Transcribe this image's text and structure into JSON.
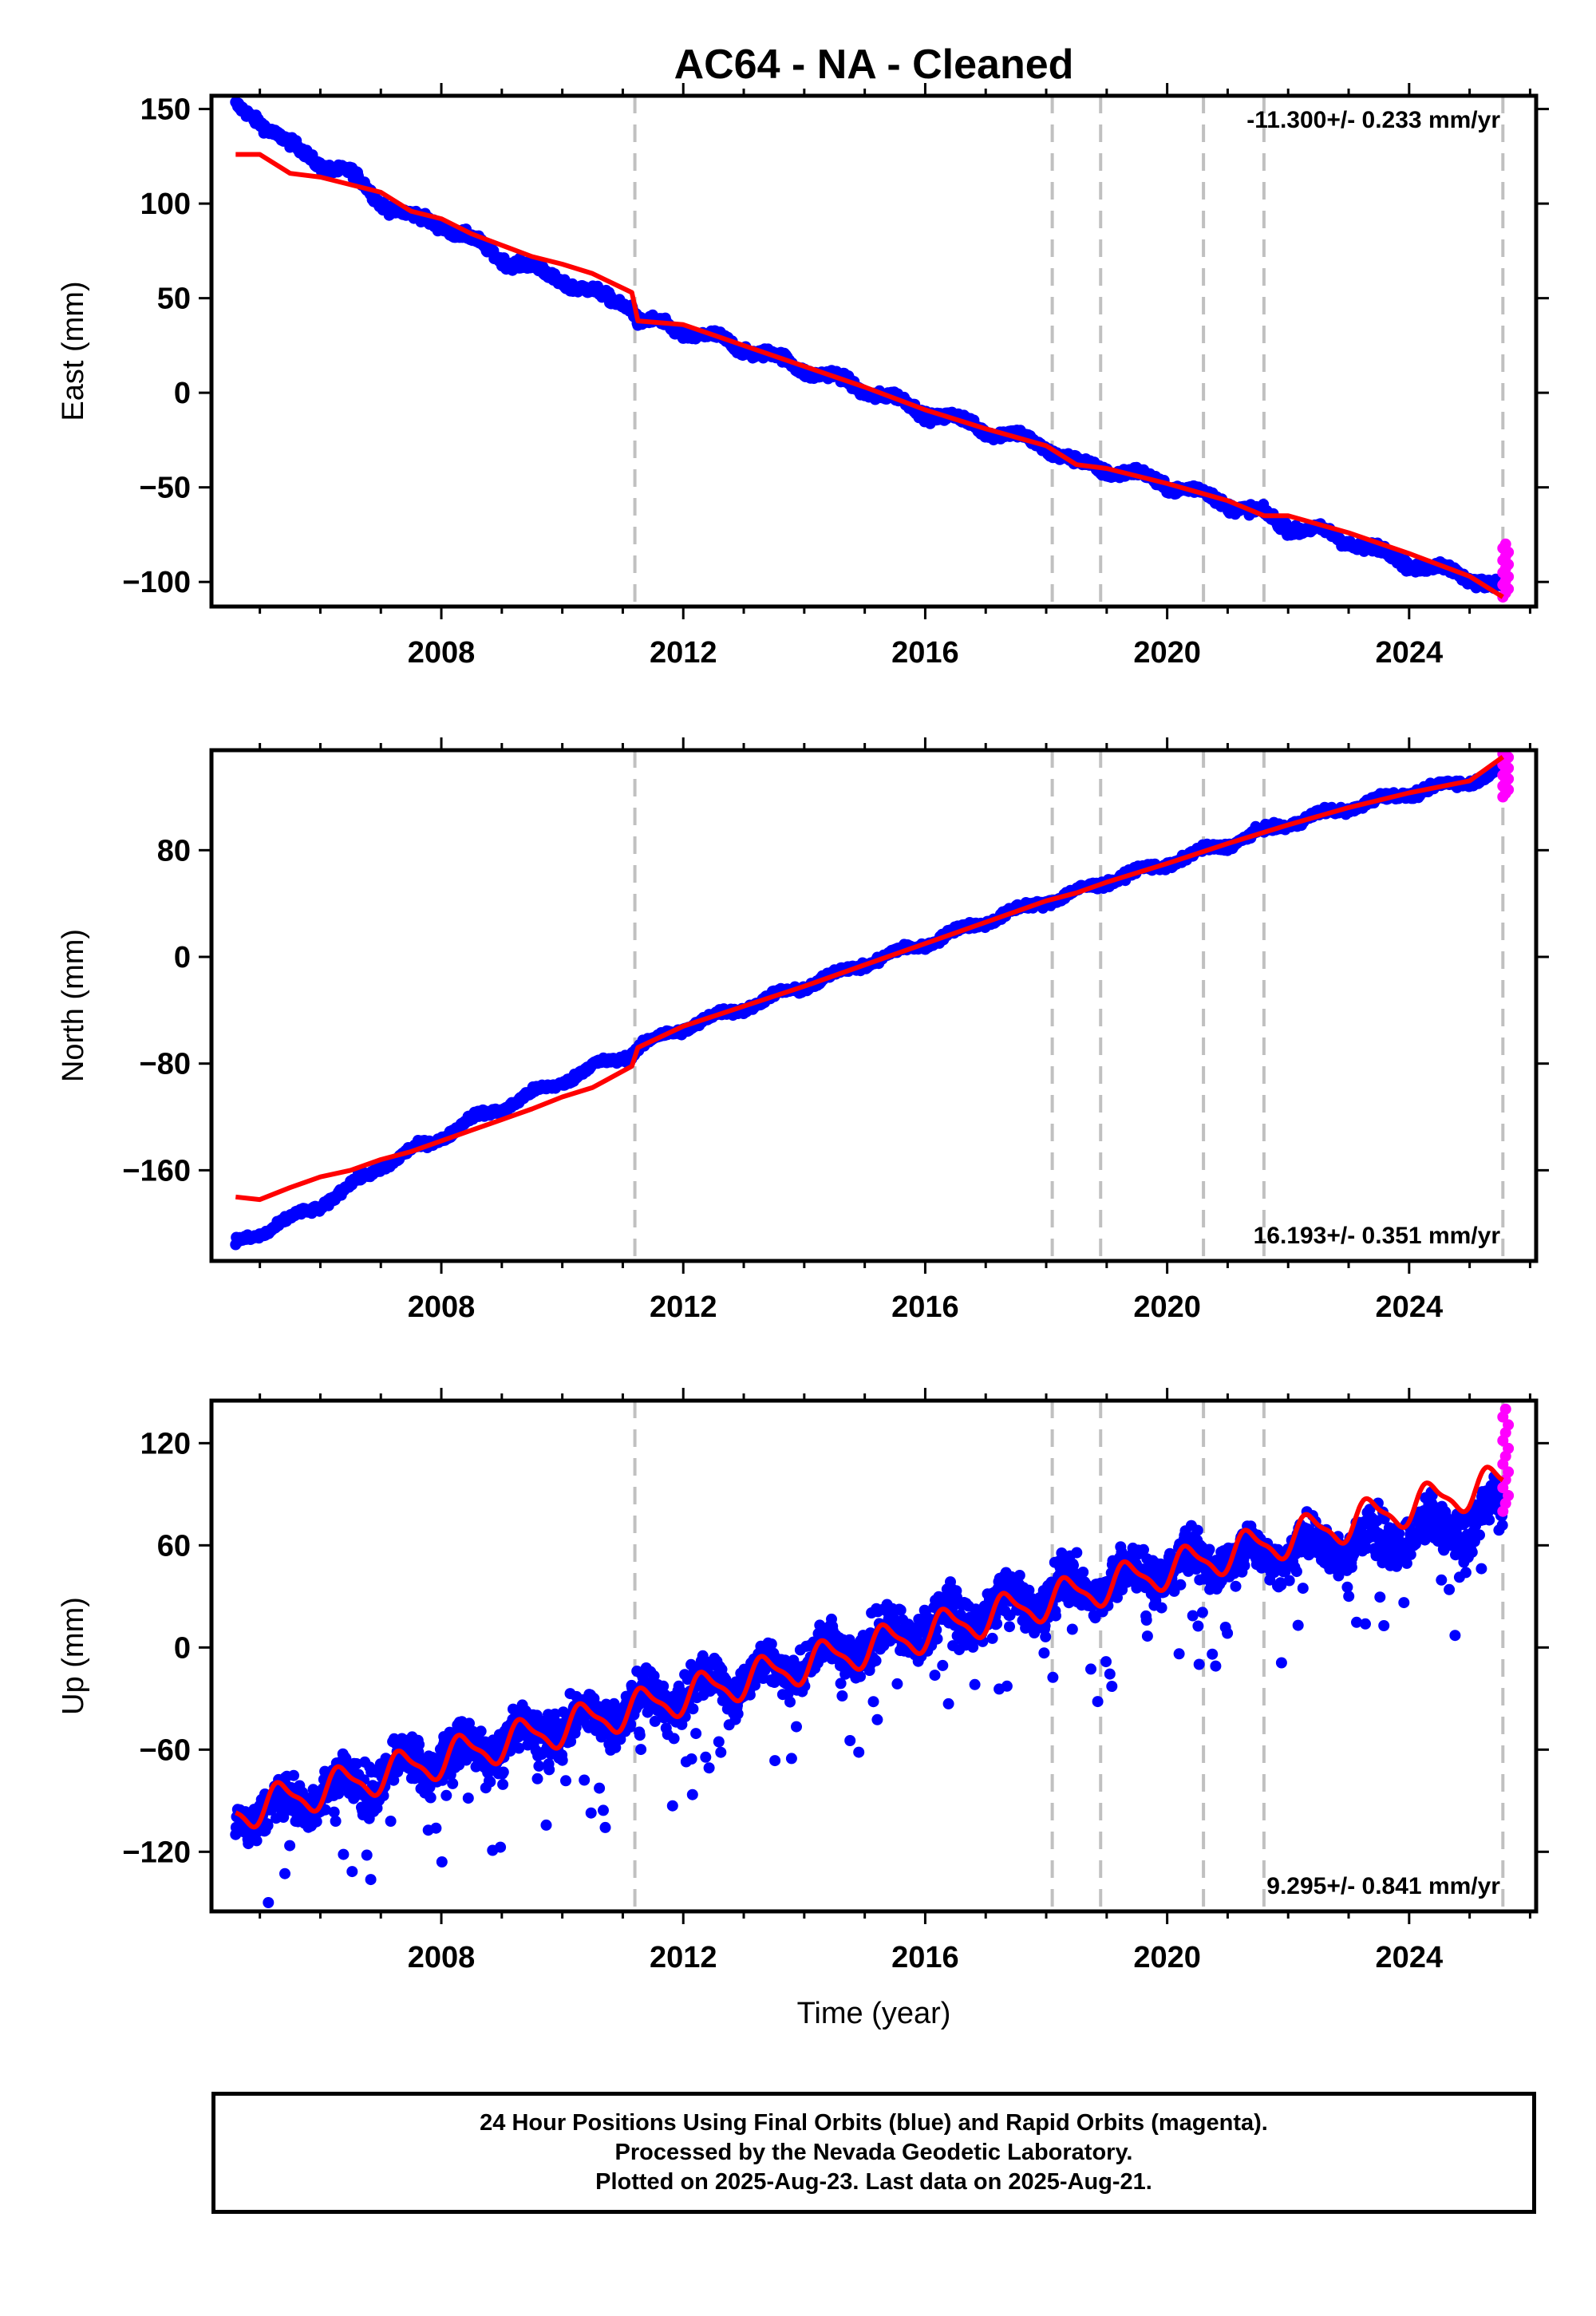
{
  "title": "AC64  - NA - Cleaned",
  "colors": {
    "final": "#0000ff",
    "rapid": "#ff00ff",
    "model": "#ff0000",
    "steps": "#c0c0c0"
  },
  "footer": {
    "line1": "24 Hour Positions Using Final Orbits (blue) and Rapid Orbits (magenta).",
    "line2": "Processed by the Nevada Geodetic Laboratory.",
    "line3": "Plotted on 2025-Aug-23. Last data on 2025-Aug-21."
  },
  "chart_data": [
    {
      "type": "scatter",
      "panel": "east",
      "ylabel": "East (mm)",
      "xlabel": "",
      "rate": "-11.300+/- 0.233 mm/yr",
      "rate_position": "top-right",
      "xlim": [
        2004.2,
        2026.1
      ],
      "ylim": [
        -113,
        157
      ],
      "xticks": [
        2008,
        2012,
        2016,
        2020,
        2024
      ],
      "yticks": [
        -100,
        -50,
        0,
        50,
        100,
        150
      ],
      "ytick_labels": [
        "−100",
        "−50",
        "0",
        "50",
        "100",
        "150"
      ],
      "steps": [
        2011.2,
        2018.1,
        2018.9,
        2020.6,
        2021.6,
        2025.55
      ],
      "data_span": [
        2004.6,
        2025.55
      ],
      "rapid_span": [
        2025.55,
        2025.64
      ],
      "final_series": {
        "x": [
          2004.6,
          2005.0,
          2005.5,
          2006.0,
          2006.5,
          2007.0,
          2007.5,
          2008.0,
          2008.5,
          2009.0,
          2009.5,
          2010.0,
          2010.5,
          2011.15,
          2011.25,
          2012.0,
          2013.0,
          2014.0,
          2015.0,
          2016.0,
          2017.0,
          2018.0,
          2018.5,
          2019.0,
          2020.0,
          2021.0,
          2022.0,
          2023.0,
          2024.0,
          2025.0,
          2025.5
        ],
        "y": [
          150,
          145,
          130,
          122,
          115,
          102,
          92,
          90,
          80,
          72,
          65,
          60,
          52,
          47,
          38,
          33,
          24,
          13,
          2,
          -10,
          -19,
          -28,
          -38,
          -40,
          -48,
          -58,
          -70,
          -78,
          -90,
          -97,
          -103
        ]
      },
      "model_series": {
        "x": [
          2004.6,
          2005.0,
          2005.5,
          2006.0,
          2006.5,
          2007.0,
          2007.5,
          2008.0,
          2008.5,
          2009.0,
          2009.5,
          2010.0,
          2010.5,
          2011.15,
          2011.25,
          2012.0,
          2013.0,
          2014.0,
          2015.0,
          2016.0,
          2017.0,
          2018.0,
          2018.5,
          2019.0,
          2020.0,
          2021.0,
          2021.6,
          2022.0,
          2023.0,
          2024.0,
          2025.0,
          2025.4,
          2025.55
        ],
        "y": [
          126,
          126,
          116,
          114,
          110,
          106,
          96,
          92,
          84,
          78,
          72,
          68,
          63,
          53,
          38,
          36,
          25,
          14,
          3,
          -9,
          -19,
          -28,
          -38,
          -40,
          -48,
          -57,
          -65,
          -65,
          -74,
          -85,
          -97,
          -105,
          -108
        ]
      },
      "rapid_y": [
        -108,
        -80
      ]
    },
    {
      "type": "scatter",
      "panel": "north",
      "ylabel": "North (mm)",
      "xlabel": "",
      "rate": "16.193+/- 0.351 mm/yr",
      "rate_position": "bottom-right",
      "xlim": [
        2004.2,
        2026.1
      ],
      "ylim": [
        -228,
        155
      ],
      "xticks": [
        2008,
        2012,
        2016,
        2020,
        2024
      ],
      "yticks": [
        -160,
        -80,
        0,
        80
      ],
      "ytick_labels": [
        "−160",
        "−80",
        "0",
        "80"
      ],
      "steps": [
        2011.2,
        2018.1,
        2018.9,
        2020.6,
        2021.6,
        2025.55
      ],
      "data_span": [
        2004.6,
        2025.55
      ],
      "rapid_span": [
        2025.55,
        2025.64
      ],
      "final_series": {
        "x": [
          2004.6,
          2005.0,
          2005.5,
          2006.0,
          2006.5,
          2007.0,
          2007.5,
          2008.0,
          2008.5,
          2009.0,
          2009.5,
          2010.0,
          2010.5,
          2011.15,
          2011.25,
          2012.0,
          2013.0,
          2014.0,
          2015.0,
          2016.0,
          2017.0,
          2018.0,
          2018.5,
          2019.0,
          2020.0,
          2021.0,
          2022.0,
          2023.0,
          2024.0,
          2025.0,
          2025.5
        ],
        "y": [
          -215,
          -207,
          -197,
          -186,
          -172,
          -157,
          -146,
          -135,
          -122,
          -113,
          -103,
          -93,
          -83,
          -72,
          -68,
          -53,
          -38,
          -22,
          -5,
          10,
          27,
          42,
          48,
          57,
          70,
          85,
          100,
          112,
          123,
          132,
          140
        ]
      },
      "model_series": {
        "x": [
          2004.6,
          2005.0,
          2005.5,
          2006.0,
          2006.5,
          2007.0,
          2007.5,
          2008.0,
          2008.5,
          2009.0,
          2009.5,
          2010.0,
          2010.5,
          2011.15,
          2011.25,
          2012.0,
          2013.0,
          2014.0,
          2015.0,
          2016.0,
          2017.0,
          2018.0,
          2018.5,
          2019.0,
          2020.0,
          2021.0,
          2022.0,
          2023.0,
          2024.0,
          2025.0,
          2025.55
        ],
        "y": [
          -180,
          -182,
          -173,
          -165,
          -160,
          -152,
          -146,
          -138,
          -130,
          -122,
          -114,
          -105,
          -98,
          -82,
          -68,
          -52,
          -37,
          -22,
          -6,
          10,
          26,
          42,
          48,
          56,
          70,
          85,
          99,
          112,
          123,
          132,
          150
        ]
      },
      "rapid_y": [
        120,
        155
      ]
    },
    {
      "type": "scatter",
      "panel": "up",
      "ylabel": "Up (mm)",
      "xlabel": "Time (year)",
      "rate": "9.295+/- 0.841 mm/yr",
      "rate_position": "bottom-right",
      "xlim": [
        2004.2,
        2026.1
      ],
      "ylim": [
        -155,
        145
      ],
      "xticks": [
        2008,
        2012,
        2016,
        2020,
        2024
      ],
      "yticks": [
        -120,
        -60,
        0,
        60,
        120
      ],
      "ytick_labels": [
        "−120",
        "−60",
        "0",
        "60",
        "120"
      ],
      "steps": [
        2011.2,
        2018.1,
        2018.9,
        2020.6,
        2021.6,
        2025.55
      ],
      "data_span": [
        2004.6,
        2025.55
      ],
      "rapid_span": [
        2025.55,
        2025.64
      ],
      "final_series": {
        "x": [
          2004.6,
          2005.0,
          2005.5,
          2006.0,
          2007.0,
          2008.0,
          2009.0,
          2010.0,
          2011.0,
          2012.0,
          2013.0,
          2014.0,
          2015.0,
          2016.0,
          2017.0,
          2018.0,
          2019.0,
          2020.0,
          2021.0,
          2022.0,
          2023.0,
          2024.0,
          2025.0,
          2025.5
        ],
        "y": [
          -100,
          -95,
          -92,
          -86,
          -75,
          -65,
          -56,
          -47,
          -37,
          -28,
          -18,
          -8,
          2,
          12,
          22,
          30,
          38,
          46,
          52,
          57,
          60,
          66,
          72,
          82
        ],
        "scatter": 18
      },
      "model_series": {
        "x": [
          2004.6,
          2025.55
        ],
        "y": [
          -97,
          97
        ],
        "annual_amplitude": 10
      },
      "rapid_y": [
        80,
        140
      ]
    }
  ]
}
